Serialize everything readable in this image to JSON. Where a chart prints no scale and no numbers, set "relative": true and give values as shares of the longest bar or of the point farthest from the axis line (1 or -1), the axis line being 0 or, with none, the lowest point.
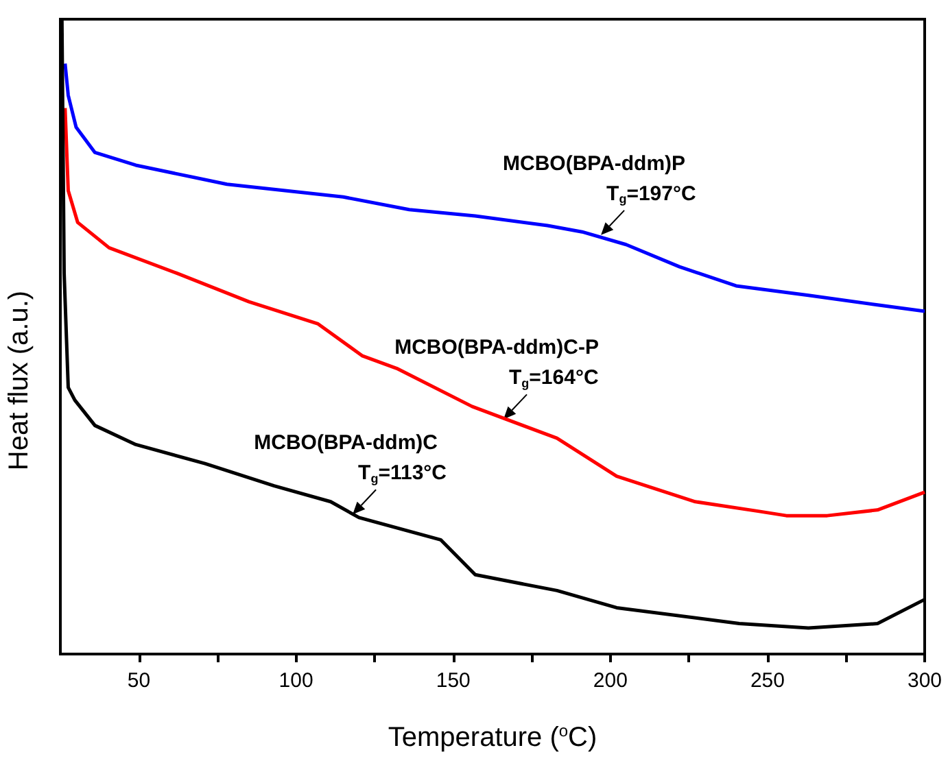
{
  "chart_data": {
    "type": "line",
    "relative": true,
    "xlabel": "Temperature ($^{o}$C)",
    "ylabel": "Heat flux (a.u.)",
    "tick_labels": "x",
    "xlim": [
      25,
      300
    ],
    "xticks": [
      50,
      {
        "value": 75,
        "label": null
      },
      100,
      {
        "value": 125,
        "label": null
      },
      150,
      {
        "value": 175,
        "label": null
      },
      200,
      {
        "value": 225,
        "label": null
      },
      250,
      {
        "value": 275,
        "label": null
      },
      300
    ],
    "series": [
      {
        "name": "MCBO(BPA-ddm)P",
        "color": "#0000ff",
        "x": [
          26.5,
          27.5,
          30,
          36,
          49,
          78,
          115,
          136,
          157,
          180,
          191,
          205,
          222,
          240,
          263,
          285,
          300
        ],
        "values": [
          0.93,
          0.88,
          0.83,
          0.79,
          0.77,
          0.74,
          0.72,
          0.7,
          0.69,
          0.675,
          0.665,
          0.645,
          0.61,
          0.58,
          0.565,
          0.55,
          0.54
        ]
      },
      {
        "name": "MCBO(BPA-ddm)C-P",
        "color": "#ff0000",
        "x": [
          26.5,
          27.5,
          30.5,
          40.5,
          62,
          85,
          107,
          121,
          132,
          156,
          183,
          202,
          227,
          247,
          256,
          269,
          285,
          300
        ],
        "values": [
          0.86,
          0.73,
          0.68,
          0.64,
          0.6,
          0.555,
          0.52,
          0.47,
          0.45,
          0.39,
          0.34,
          0.28,
          0.24,
          0.225,
          0.218,
          0.218,
          0.227,
          0.255
        ]
      },
      {
        "name": "MCBO(BPA-ddm)C",
        "color": "#000000",
        "x": [
          25.5,
          26.2,
          27.5,
          29.6,
          36,
          49,
          71,
          93,
          111,
          120,
          146,
          157,
          183,
          202,
          241,
          263,
          285,
          300
        ],
        "values": [
          1,
          0.6,
          0.42,
          0.4,
          0.36,
          0.33,
          0.3,
          0.265,
          0.24,
          0.215,
          0.18,
          0.125,
          0.1,
          0.073,
          0.048,
          0.041,
          0.048,
          0.086
        ]
      }
    ],
    "annotations": [
      {
        "text": "T$_{g}$=197°C",
        "x": 197,
        "y": 0.66
      },
      {
        "text": "T$_{g}$=164°C",
        "x": 166,
        "y": 0.37
      },
      {
        "text": "T$_{g}$=113°C",
        "x": 118,
        "y": 0.22
      }
    ]
  }
}
